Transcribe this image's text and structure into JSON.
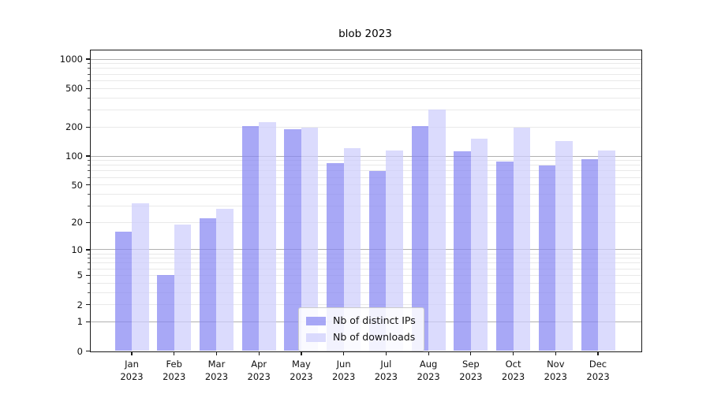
{
  "title": "blob 2023",
  "colors": {
    "bar_ips": "rgba(134,134,242,0.72)",
    "bar_downloads": "rgba(205,205,252,0.72)",
    "grid_major": "#b0b0b0",
    "grid_minor": "#e9e9e9",
    "spine": "#1a1a1a",
    "tick_minor": "#555555"
  },
  "chart_data": {
    "type": "bar",
    "title": "blob 2023",
    "yscale": "log1p",
    "ylim": [
      0,
      1240
    ],
    "grid": true,
    "legend_position": "lower-center",
    "xlabel": "",
    "ylabel": "",
    "categories": [
      "Jan 2023",
      "Feb 2023",
      "Mar 2023",
      "Apr 2023",
      "May 2023",
      "Jun 2023",
      "Jul 2023",
      "Aug 2023",
      "Sep 2023",
      "Oct 2023",
      "Nov 2023",
      "Dec 2023"
    ],
    "yticks": [
      0,
      1,
      2,
      5,
      10,
      20,
      50,
      100,
      200,
      500,
      1000
    ],
    "series": [
      {
        "name": "Nb of distinct IPs",
        "values": [
          16,
          5,
          22,
          205,
          190,
          84,
          70,
          205,
          112,
          87,
          80,
          93
        ]
      },
      {
        "name": "Nb of downloads",
        "values": [
          32,
          19,
          28,
          225,
          196,
          121,
          115,
          300,
          151,
          196,
          143,
          114
        ]
      }
    ]
  }
}
